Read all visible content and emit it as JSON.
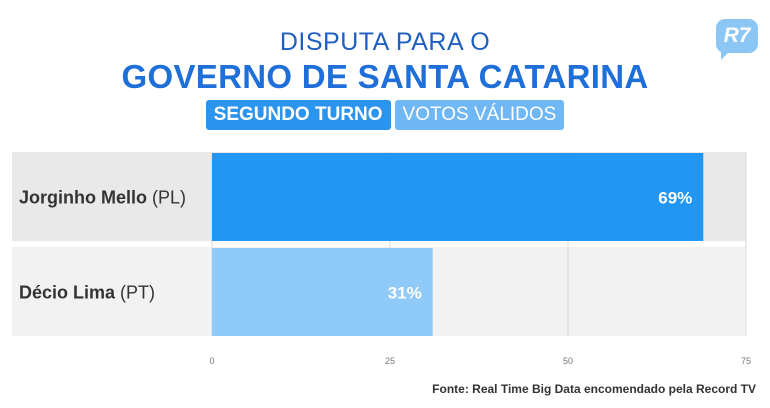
{
  "header": {
    "title_line1": "DISPUTA PARA O",
    "title_line2": "GOVERNO DE SANTA CATARINA",
    "badge_primary": "SEGUNDO TURNO",
    "badge_secondary": "VOTOS VÁLIDOS",
    "logo_text": "R7"
  },
  "colors": {
    "title": "#1f5fbf",
    "bar_primary": "#2196f3",
    "bar_secondary": "#90caf9",
    "row_bg_1": "#e9e9e9",
    "row_bg_2": "#f2f2f2"
  },
  "chart_data": {
    "type": "bar",
    "orientation": "horizontal",
    "categories": [
      {
        "name": "Jorginho Mello",
        "party": "(PL)"
      },
      {
        "name": "Décio Lima",
        "party": "(PT)"
      }
    ],
    "values": [
      69,
      31
    ],
    "value_labels": [
      "69%",
      "31%"
    ],
    "xlim": [
      0,
      75
    ],
    "x_ticks": [
      0,
      25,
      50,
      75
    ],
    "x_tick_labels": [
      "0",
      "25",
      "50",
      "75"
    ],
    "grid": true
  },
  "footer": {
    "source": "Fonte: Real Time Big Data encomendado pela Record TV"
  }
}
